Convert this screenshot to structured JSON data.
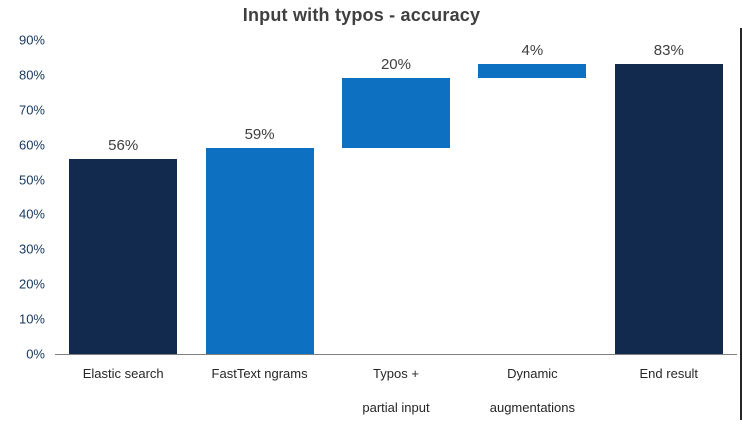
{
  "chart_data": {
    "type": "bar",
    "subtype": "waterfall",
    "title": "Input with typos - accuracy",
    "grid": false,
    "legend": "none",
    "categories": [
      "Elastic search",
      "FastText ngrams",
      "Typos + partial input",
      "Dynamic augmentations",
      "End result"
    ],
    "bars": [
      {
        "category": "Elastic search",
        "label_lines": [
          "Elastic search"
        ],
        "start": 0,
        "end": 56,
        "label": "56%",
        "color": "#132a4f"
      },
      {
        "category": "FastText ngrams",
        "label_lines": [
          "FastText ngrams"
        ],
        "start": 0,
        "end": 59,
        "label": "59%",
        "color": "#0e70c0"
      },
      {
        "category": "Typos + partial input",
        "label_lines": [
          "Typos +",
          "partial input"
        ],
        "start": 59,
        "end": 79,
        "label": "20%",
        "color": "#0e70c0"
      },
      {
        "category": "Dynamic augmentations",
        "label_lines": [
          "Dynamic",
          "augmentations"
        ],
        "start": 79,
        "end": 83,
        "label": "4%",
        "color": "#0e70c0"
      },
      {
        "category": "End result",
        "label_lines": [
          "End result"
        ],
        "start": 0,
        "end": 83,
        "label": "83%",
        "color": "#132a4f"
      }
    ],
    "y_axis": {
      "min": 0,
      "max": 90,
      "step": 10,
      "tick_suffix": "%",
      "tick_labels": [
        "0%",
        "10%",
        "20%",
        "30%",
        "40%",
        "50%",
        "60%",
        "70%",
        "80%",
        "90%"
      ]
    },
    "colors": {
      "navy": "#132a4f",
      "blue": "#0e70c0",
      "title_text": "#3f3f3f",
      "y_tick_text": "#17375e",
      "category_text": "#262626",
      "axis_line": "#7f7f7f",
      "right_edge_line": "#262626"
    }
  }
}
